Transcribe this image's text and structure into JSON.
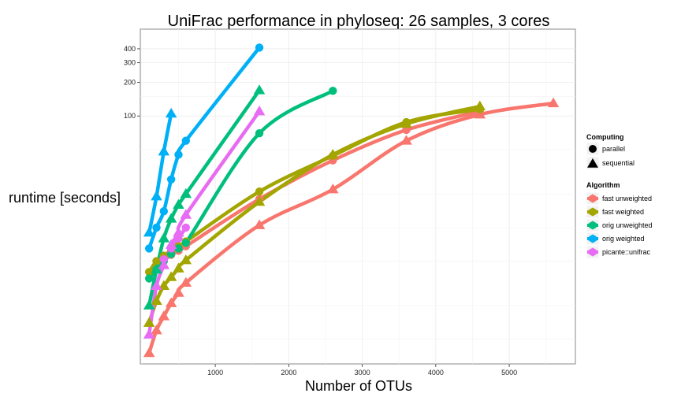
{
  "chart_data": {
    "type": "line",
    "title": "UniFrac performance in phyloseq:  26  samples,  3  cores",
    "xlabel": "Number of OTUs",
    "ylabel": "runtime [seconds]",
    "xlim": [
      -20,
      5900
    ],
    "ylim": [
      0.6,
      600
    ],
    "y_scale": "log10",
    "x_ticks": [
      1000,
      2000,
      3000,
      4000,
      5000
    ],
    "x_tick_labels": [
      "1000",
      "2000",
      "3000",
      "4000",
      "5000"
    ],
    "y_ticks": [
      100,
      200,
      300,
      400
    ],
    "y_tick_labels": [
      "100",
      "200",
      "300",
      "400"
    ],
    "grid": true,
    "legend_position": "right",
    "legend": {
      "computing_title": "Computing",
      "computing": [
        {
          "label": "parallel",
          "shape": "circle"
        },
        {
          "label": "sequential",
          "shape": "triangle"
        }
      ],
      "algorithm_title": "Algorithm",
      "algorithms": [
        {
          "label": "fast unweighted",
          "color": "#F8766D"
        },
        {
          "label": "fast weighted",
          "color": "#A3A500"
        },
        {
          "label": "orig unweighted",
          "color": "#00BF7D"
        },
        {
          "label": "orig weighted",
          "color": "#00B0F6"
        },
        {
          "label": "picante::unifrac",
          "color": "#E76BF3"
        }
      ]
    },
    "series": [
      {
        "algorithm": "fast unweighted",
        "computing": "sequential",
        "color": "#F8766D",
        "x": [
          100,
          200,
          300,
          400,
          500,
          600,
          1600,
          2600,
          3600,
          4600,
          5600
        ],
        "y": [
          0.75,
          1.2,
          1.6,
          2.1,
          2.6,
          3.2,
          10.5,
          22,
          60,
          103,
          130
        ]
      },
      {
        "algorithm": "fast unweighted",
        "computing": "parallel",
        "color": "#F8766D",
        "x": [
          200,
          300,
          400,
          500,
          600,
          1600,
          2600,
          3600,
          4600
        ],
        "y": [
          5.0,
          5.3,
          5.7,
          6.2,
          6.8,
          18,
          40,
          75,
          110
        ]
      },
      {
        "algorithm": "fast weighted",
        "computing": "sequential",
        "color": "#A3A500",
        "x": [
          100,
          200,
          300,
          400,
          500,
          600,
          1600,
          2600,
          3600,
          4600
        ],
        "y": [
          1.4,
          2.2,
          3.0,
          3.6,
          4.3,
          5.1,
          17,
          45,
          85,
          122
        ]
      },
      {
        "algorithm": "fast weighted",
        "computing": "parallel",
        "color": "#A3A500",
        "x": [
          100,
          200,
          300,
          400,
          500,
          600,
          1600,
          2600,
          3600,
          4600
        ],
        "y": [
          4.0,
          5.0,
          5.6,
          6.2,
          6.8,
          7.5,
          21,
          44,
          88,
          115
        ]
      },
      {
        "algorithm": "orig unweighted",
        "computing": "sequential",
        "color": "#00BF7D",
        "x": [
          100,
          200,
          300,
          400,
          500,
          600,
          1600
        ],
        "y": [
          2.0,
          4.2,
          8.0,
          12,
          16,
          20,
          170
        ]
      },
      {
        "algorithm": "orig unweighted",
        "computing": "parallel",
        "color": "#00BF7D",
        "x": [
          100,
          200,
          300,
          400,
          500,
          600,
          1600,
          2600
        ],
        "y": [
          3.5,
          4.2,
          5.0,
          5.8,
          6.5,
          7.3,
          70,
          168
        ]
      },
      {
        "algorithm": "orig weighted",
        "computing": "sequential",
        "color": "#00B0F6",
        "x": [
          100,
          200,
          300,
          400
        ],
        "y": [
          9.0,
          19,
          48,
          105
        ]
      },
      {
        "algorithm": "orig weighted",
        "computing": "parallel",
        "color": "#00B0F6",
        "x": [
          100,
          200,
          300,
          400,
          500,
          600,
          1600
        ],
        "y": [
          6.5,
          10,
          14,
          27,
          45,
          60,
          410
        ]
      },
      {
        "algorithm": "picante::unifrac",
        "computing": "sequential",
        "color": "#E76BF3",
        "x": [
          100,
          200,
          300,
          400,
          500,
          600,
          1600
        ],
        "y": [
          1.1,
          3.0,
          4.6,
          7.0,
          9.0,
          13,
          110
        ]
      },
      {
        "algorithm": "picante::unifrac",
        "computing": "parallel",
        "color": "#E76BF3",
        "x": [
          300,
          400,
          500,
          600
        ],
        "y": [
          5.2,
          6.5,
          8.0,
          10
        ]
      }
    ]
  }
}
